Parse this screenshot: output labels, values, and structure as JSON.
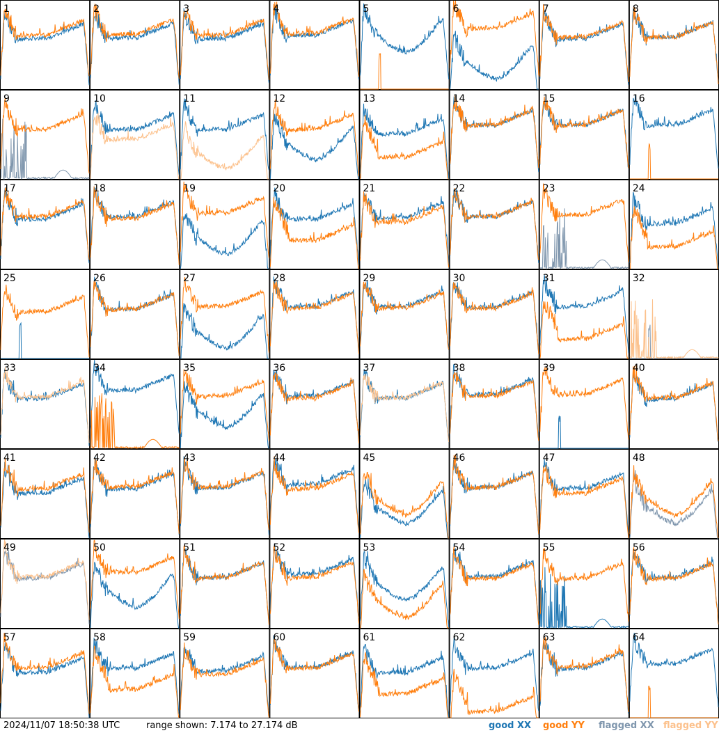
{
  "footer": {
    "timestamp": "2024/11/07 18:50:38 UTC",
    "range_text": "range shown: 7.174 to 27.174 dB"
  },
  "legend": {
    "good_xx": "good XX",
    "good_yy": "good YY",
    "flagged_xx": "flagged XX",
    "flagged_yy": "flagged YY"
  },
  "colors": {
    "good_xx": "#1f77b4",
    "good_yy": "#ff7f0e",
    "flagged_xx": "#7f96ad",
    "flagged_yy": "#fcc18c",
    "frame": "#000000",
    "background": "#ffffff"
  },
  "chart_data": {
    "type": "line",
    "layout": "8x8 grid of small multiples",
    "y_range_db": [
      7.174,
      27.174
    ],
    "grid": false,
    "legend_placement": "bottom-right",
    "panels": [
      {
        "id": "1",
        "xx": {
          "flag": "good",
          "shape": "normal",
          "level": 0.56
        },
        "yy": {
          "flag": "good",
          "shape": "normal",
          "level": 0.6
        }
      },
      {
        "id": "2",
        "xx": {
          "flag": "good",
          "shape": "normal",
          "level": 0.57
        },
        "yy": {
          "flag": "good",
          "shape": "normal",
          "level": 0.61
        }
      },
      {
        "id": "3",
        "xx": {
          "flag": "good",
          "shape": "normal",
          "level": 0.56
        },
        "yy": {
          "flag": "good",
          "shape": "normal",
          "level": 0.6
        }
      },
      {
        "id": "4",
        "xx": {
          "flag": "good",
          "shape": "normal",
          "level": 0.6
        },
        "yy": {
          "flag": "good",
          "shape": "normal",
          "level": 0.62
        }
      },
      {
        "id": "5",
        "xx": {
          "flag": "good",
          "shape": "dip",
          "level": 0.6
        },
        "yy": {
          "flag": "good",
          "shape": "dead",
          "level": 0.0
        }
      },
      {
        "id": "6",
        "xx": {
          "flag": "good",
          "shape": "dip",
          "level": 0.3
        },
        "yy": {
          "flag": "good",
          "shape": "normal",
          "level": 0.68
        }
      },
      {
        "id": "7",
        "xx": {
          "flag": "good",
          "shape": "normal",
          "level": 0.56
        },
        "yy": {
          "flag": "good",
          "shape": "normal",
          "level": 0.58
        }
      },
      {
        "id": "8",
        "xx": {
          "flag": "good",
          "shape": "normal",
          "level": 0.58
        },
        "yy": {
          "flag": "good",
          "shape": "normal",
          "level": 0.58
        }
      },
      {
        "id": "9",
        "xx": {
          "flag": "flagged",
          "shape": "spiky",
          "level": 0.02
        },
        "yy": {
          "flag": "good",
          "shape": "normal",
          "level": 0.55
        }
      },
      {
        "id": "10",
        "xx": {
          "flag": "good",
          "shape": "normal",
          "level": 0.55
        },
        "yy": {
          "flag": "flagged",
          "shape": "normal",
          "level": 0.44
        }
      },
      {
        "id": "11",
        "xx": {
          "flag": "good",
          "shape": "normal",
          "level": 0.55
        },
        "yy": {
          "flag": "flagged",
          "shape": "dip",
          "level": 0.3
        }
      },
      {
        "id": "12",
        "xx": {
          "flag": "good",
          "shape": "dip",
          "level": 0.4
        },
        "yy": {
          "flag": "good",
          "shape": "normal",
          "level": 0.55
        }
      },
      {
        "id": "13",
        "xx": {
          "flag": "good",
          "shape": "normal",
          "level": 0.5
        },
        "yy": {
          "flag": "good",
          "shape": "low",
          "level": 0.38
        }
      },
      {
        "id": "14",
        "xx": {
          "flag": "good",
          "shape": "normal",
          "level": 0.6
        },
        "yy": {
          "flag": "good",
          "shape": "normal",
          "level": 0.6
        }
      },
      {
        "id": "15",
        "xx": {
          "flag": "good",
          "shape": "normal",
          "level": 0.6
        },
        "yy": {
          "flag": "good",
          "shape": "normal",
          "level": 0.6
        }
      },
      {
        "id": "16",
        "xx": {
          "flag": "good",
          "shape": "normal",
          "level": 0.6
        },
        "yy": {
          "flag": "good",
          "shape": "dead",
          "level": 0.0
        }
      },
      {
        "id": "17",
        "xx": {
          "flag": "good",
          "shape": "normal",
          "level": 0.55
        },
        "yy": {
          "flag": "good",
          "shape": "normal",
          "level": 0.58
        }
      },
      {
        "id": "18",
        "xx": {
          "flag": "good",
          "shape": "normal",
          "level": 0.58
        },
        "yy": {
          "flag": "good",
          "shape": "normal",
          "level": 0.56
        }
      },
      {
        "id": "19",
        "xx": {
          "flag": "good",
          "shape": "dip",
          "level": 0.35
        },
        "yy": {
          "flag": "good",
          "shape": "normal",
          "level": 0.62
        }
      },
      {
        "id": "20",
        "xx": {
          "flag": "good",
          "shape": "normal",
          "level": 0.55
        },
        "yy": {
          "flag": "good",
          "shape": "low",
          "level": 0.45
        }
      },
      {
        "id": "21",
        "xx": {
          "flag": "good",
          "shape": "normal",
          "level": 0.57
        },
        "yy": {
          "flag": "good",
          "shape": "normal",
          "level": 0.52
        }
      },
      {
        "id": "22",
        "xx": {
          "flag": "good",
          "shape": "normal",
          "level": 0.58
        },
        "yy": {
          "flag": "good",
          "shape": "normal",
          "level": 0.58
        }
      },
      {
        "id": "23",
        "xx": {
          "flag": "flagged",
          "shape": "spiky",
          "level": 0.05
        },
        "yy": {
          "flag": "good",
          "shape": "normal",
          "level": 0.6
        }
      },
      {
        "id": "24",
        "xx": {
          "flag": "good",
          "shape": "normal",
          "level": 0.5
        },
        "yy": {
          "flag": "good",
          "shape": "low",
          "level": 0.38
        }
      },
      {
        "id": "25",
        "xx": {
          "flag": "good",
          "shape": "dead",
          "level": 0.0
        },
        "yy": {
          "flag": "good",
          "shape": "normal",
          "level": 0.52
        }
      },
      {
        "id": "26",
        "xx": {
          "flag": "good",
          "shape": "normal",
          "level": 0.55
        },
        "yy": {
          "flag": "good",
          "shape": "normal",
          "level": 0.55
        }
      },
      {
        "id": "27",
        "xx": {
          "flag": "good",
          "shape": "dip",
          "level": 0.3
        },
        "yy": {
          "flag": "good",
          "shape": "normal",
          "level": 0.58
        }
      },
      {
        "id": "28",
        "xx": {
          "flag": "good",
          "shape": "normal",
          "level": 0.58
        },
        "yy": {
          "flag": "good",
          "shape": "normal",
          "level": 0.56
        }
      },
      {
        "id": "29",
        "xx": {
          "flag": "good",
          "shape": "normal",
          "level": 0.58
        },
        "yy": {
          "flag": "good",
          "shape": "normal",
          "level": 0.56
        }
      },
      {
        "id": "30",
        "xx": {
          "flag": "good",
          "shape": "normal",
          "level": 0.57
        },
        "yy": {
          "flag": "good",
          "shape": "normal",
          "level": 0.56
        }
      },
      {
        "id": "31",
        "xx": {
          "flag": "good",
          "shape": "normal",
          "level": 0.58
        },
        "yy": {
          "flag": "good",
          "shape": "low",
          "level": 0.35
        }
      },
      {
        "id": "32",
        "xx": {
          "flag": "flagged",
          "shape": "dead",
          "level": 0.0
        },
        "yy": {
          "flag": "flagged",
          "shape": "spiky",
          "level": 0.3
        }
      },
      {
        "id": "33",
        "xx": {
          "flag": "good",
          "shape": "normal",
          "level": 0.55
        },
        "yy": {
          "flag": "flagged",
          "shape": "normal",
          "level": 0.57
        }
      },
      {
        "id": "34",
        "xx": {
          "flag": "good",
          "shape": "normal",
          "level": 0.65
        },
        "yy": {
          "flag": "good",
          "shape": "spiky",
          "level": 0.02
        }
      },
      {
        "id": "35",
        "xx": {
          "flag": "good",
          "shape": "dip",
          "level": 0.42
        },
        "yy": {
          "flag": "good",
          "shape": "normal",
          "level": 0.58
        }
      },
      {
        "id": "36",
        "xx": {
          "flag": "good",
          "shape": "normal",
          "level": 0.58
        },
        "yy": {
          "flag": "good",
          "shape": "normal",
          "level": 0.56
        }
      },
      {
        "id": "37",
        "xx": {
          "flag": "good",
          "shape": "normal",
          "level": 0.56
        },
        "yy": {
          "flag": "flagged",
          "shape": "normal",
          "level": 0.56
        }
      },
      {
        "id": "38",
        "xx": {
          "flag": "good",
          "shape": "normal",
          "level": 0.6
        },
        "yy": {
          "flag": "good",
          "shape": "normal",
          "level": 0.58
        }
      },
      {
        "id": "39",
        "xx": {
          "flag": "good",
          "shape": "dead",
          "level": 0.0
        },
        "yy": {
          "flag": "good",
          "shape": "normal",
          "level": 0.6
        }
      },
      {
        "id": "40",
        "xx": {
          "flag": "good",
          "shape": "normal",
          "level": 0.55
        },
        "yy": {
          "flag": "good",
          "shape": "normal",
          "level": 0.56
        }
      },
      {
        "id": "41",
        "xx": {
          "flag": "good",
          "shape": "normal",
          "level": 0.5
        },
        "yy": {
          "flag": "good",
          "shape": "normal",
          "level": 0.55
        }
      },
      {
        "id": "42",
        "xx": {
          "flag": "good",
          "shape": "normal",
          "level": 0.55
        },
        "yy": {
          "flag": "good",
          "shape": "normal",
          "level": 0.57
        }
      },
      {
        "id": "43",
        "xx": {
          "flag": "good",
          "shape": "normal",
          "level": 0.56
        },
        "yy": {
          "flag": "good",
          "shape": "normal",
          "level": 0.57
        }
      },
      {
        "id": "44",
        "xx": {
          "flag": "good",
          "shape": "normal",
          "level": 0.6
        },
        "yy": {
          "flag": "good",
          "shape": "normal",
          "level": 0.55
        }
      },
      {
        "id": "45",
        "xx": {
          "flag": "good",
          "shape": "dip",
          "level": 0.35
        },
        "yy": {
          "flag": "good",
          "shape": "dip",
          "level": 0.45
        }
      },
      {
        "id": "46",
        "xx": {
          "flag": "good",
          "shape": "normal",
          "level": 0.56
        },
        "yy": {
          "flag": "good",
          "shape": "normal",
          "level": 0.56
        }
      },
      {
        "id": "47",
        "xx": {
          "flag": "good",
          "shape": "normal",
          "level": 0.55
        },
        "yy": {
          "flag": "good",
          "shape": "normal",
          "level": 0.5
        }
      },
      {
        "id": "48",
        "xx": {
          "flag": "flagged",
          "shape": "dip",
          "level": 0.35
        },
        "yy": {
          "flag": "good",
          "shape": "dip",
          "level": 0.45
        }
      },
      {
        "id": "49",
        "xx": {
          "flag": "flagged",
          "shape": "normal",
          "level": 0.55
        },
        "yy": {
          "flag": "flagged",
          "shape": "normal",
          "level": 0.57
        }
      },
      {
        "id": "50",
        "xx": {
          "flag": "good",
          "shape": "dip",
          "level": 0.42
        },
        "yy": {
          "flag": "good",
          "shape": "normal",
          "level": 0.62
        }
      },
      {
        "id": "51",
        "xx": {
          "flag": "good",
          "shape": "normal",
          "level": 0.56
        },
        "yy": {
          "flag": "good",
          "shape": "normal",
          "level": 0.56
        }
      },
      {
        "id": "52",
        "xx": {
          "flag": "good",
          "shape": "normal",
          "level": 0.6
        },
        "yy": {
          "flag": "good",
          "shape": "normal",
          "level": 0.56
        }
      },
      {
        "id": "53",
        "xx": {
          "flag": "good",
          "shape": "dip",
          "level": 0.5
        },
        "yy": {
          "flag": "good",
          "shape": "dip",
          "level": 0.3
        }
      },
      {
        "id": "54",
        "xx": {
          "flag": "good",
          "shape": "normal",
          "level": 0.57
        },
        "yy": {
          "flag": "good",
          "shape": "normal",
          "level": 0.55
        }
      },
      {
        "id": "55",
        "xx": {
          "flag": "good",
          "shape": "spiky",
          "level": 0.03
        },
        "yy": {
          "flag": "good",
          "shape": "normal",
          "level": 0.55
        }
      },
      {
        "id": "56",
        "xx": {
          "flag": "good",
          "shape": "normal",
          "level": 0.56
        },
        "yy": {
          "flag": "good",
          "shape": "normal",
          "level": 0.55
        }
      },
      {
        "id": "57",
        "xx": {
          "flag": "good",
          "shape": "normal",
          "level": 0.5
        },
        "yy": {
          "flag": "good",
          "shape": "normal",
          "level": 0.56
        }
      },
      {
        "id": "58",
        "xx": {
          "flag": "good",
          "shape": "normal",
          "level": 0.55
        },
        "yy": {
          "flag": "good",
          "shape": "low",
          "level": 0.45
        }
      },
      {
        "id": "59",
        "xx": {
          "flag": "good",
          "shape": "normal",
          "level": 0.52
        },
        "yy": {
          "flag": "good",
          "shape": "normal",
          "level": 0.48
        }
      },
      {
        "id": "60",
        "xx": {
          "flag": "good",
          "shape": "normal",
          "level": 0.56
        },
        "yy": {
          "flag": "good",
          "shape": "normal",
          "level": 0.55
        }
      },
      {
        "id": "61",
        "xx": {
          "flag": "good",
          "shape": "normal",
          "level": 0.5
        },
        "yy": {
          "flag": "good",
          "shape": "low",
          "level": 0.4
        }
      },
      {
        "id": "62",
        "xx": {
          "flag": "good",
          "shape": "normal",
          "level": 0.55
        },
        "yy": {
          "flag": "good",
          "shape": "low",
          "level": 0.2
        }
      },
      {
        "id": "63",
        "xx": {
          "flag": "good",
          "shape": "normal",
          "level": 0.55
        },
        "yy": {
          "flag": "good",
          "shape": "normal",
          "level": 0.57
        }
      },
      {
        "id": "64",
        "xx": {
          "flag": "good",
          "shape": "normal",
          "level": 0.6
        },
        "yy": {
          "flag": "good",
          "shape": "dead",
          "level": 0.0
        }
      }
    ]
  }
}
